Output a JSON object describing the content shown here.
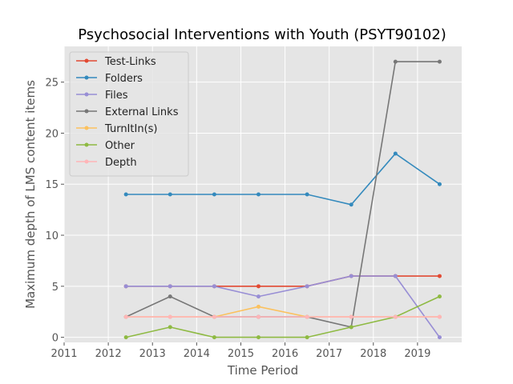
{
  "chart_data": {
    "type": "line",
    "title": "Psychosocial Interventions with Youth (PSYT90102)",
    "xlabel": "Time Period",
    "ylabel": "Maximum depth of LMS content items",
    "xlim": [
      2011,
      2020
    ],
    "ylim": [
      -0.5,
      28.5
    ],
    "xticks": [
      2011,
      2012,
      2013,
      2014,
      2015,
      2016,
      2017,
      2018,
      2019
    ],
    "yticks": [
      0,
      5,
      10,
      15,
      20,
      25
    ],
    "grid": true,
    "legend_position": "top-left",
    "x": [
      2012.4,
      2013.4,
      2014.4,
      2015.4,
      2016.5,
      2017.5,
      2018.5,
      2019.5
    ],
    "series": [
      {
        "name": "Test-Links",
        "color": "#e24a33",
        "values": [
          5,
          5,
          5,
          5,
          5,
          6,
          6,
          6
        ]
      },
      {
        "name": "Folders",
        "color": "#348abd",
        "values": [
          14,
          14,
          14,
          14,
          14,
          13,
          18,
          15
        ]
      },
      {
        "name": "Files",
        "color": "#988ed5",
        "values": [
          5,
          5,
          5,
          4,
          5,
          6,
          6,
          0
        ]
      },
      {
        "name": "External Links",
        "color": "#777777",
        "values": [
          2,
          4,
          2,
          2,
          2,
          1,
          27,
          27
        ]
      },
      {
        "name": "TurnItIn(s)",
        "color": "#fbc15e",
        "values": [
          2,
          2,
          2,
          3,
          2,
          2,
          2,
          2
        ]
      },
      {
        "name": "Other",
        "color": "#8eba42",
        "values": [
          0,
          1,
          0,
          0,
          0,
          1,
          2,
          4
        ]
      },
      {
        "name": "Depth",
        "color": "#ffb5b8",
        "values": [
          2,
          2,
          2,
          2,
          2,
          2,
          2,
          2
        ]
      }
    ]
  }
}
